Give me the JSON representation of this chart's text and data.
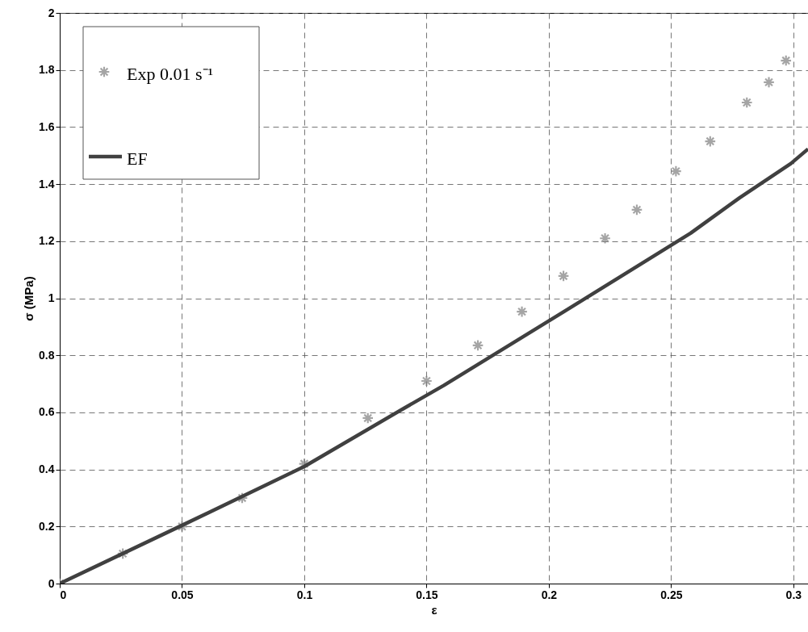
{
  "chart_data": {
    "type": "scatter",
    "xlabel": "ε",
    "ylabel": "σ (MPa)",
    "xlim": [
      0,
      0.306
    ],
    "xticks": [
      0,
      0.05,
      0.1,
      0.15,
      0.2,
      0.25,
      0.3
    ],
    "ylim": [
      0,
      2
    ],
    "yticks": [
      0,
      0.2,
      0.4,
      0.6,
      0.8,
      1,
      1.2,
      1.4,
      1.6,
      1.8,
      2
    ],
    "grid": true,
    "legend": "top left",
    "series": [
      {
        "name": "Exp 0.01 s⁻¹",
        "type": "scatter",
        "marker": "cross",
        "color": "#808080",
        "x": [
          0,
          0.0258,
          0.05,
          0.0746,
          0.1,
          0.126,
          0.15,
          0.171,
          0.189,
          0.206,
          0.223,
          0.236,
          0.252,
          0.266,
          0.281,
          0.29,
          0.297
        ],
        "values": [
          0,
          0.105,
          0.2,
          0.3,
          0.42,
          0.58,
          0.71,
          0.835,
          0.953,
          1.078,
          1.21,
          1.31,
          1.445,
          1.55,
          1.686,
          1.757,
          1.833
        ]
      },
      {
        "name": "EF",
        "type": "line",
        "line_style": "solid",
        "marker": "none",
        "color": "#404040",
        "x": [
          0,
          0.05,
          0.1,
          0.1407,
          0.157,
          0.2067,
          0.258,
          0.278,
          0.299,
          0.306
        ],
        "values": [
          0,
          0.204,
          0.41,
          0.614,
          0.694,
          0.956,
          1.228,
          1.352,
          1.472,
          1.523
        ]
      }
    ]
  }
}
